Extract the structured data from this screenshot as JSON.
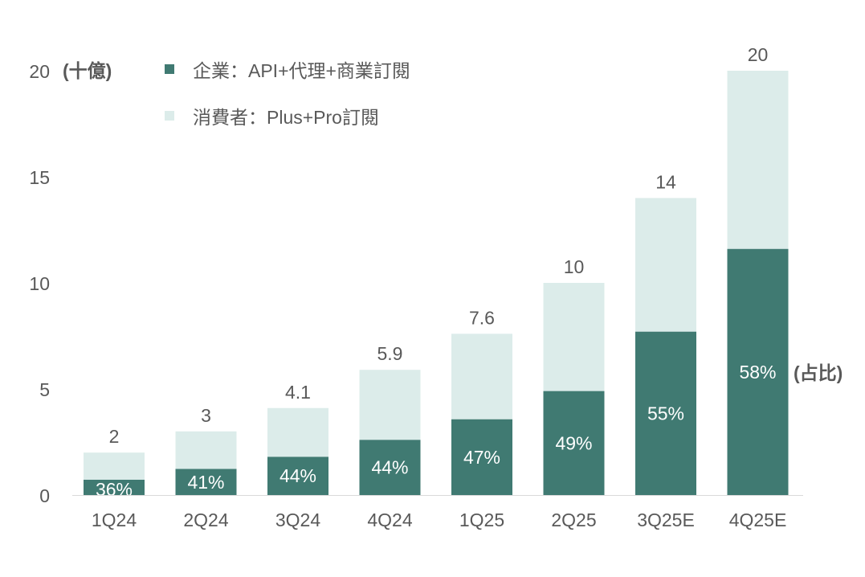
{
  "chart_data": {
    "type": "bar",
    "stacked": true,
    "title": "",
    "unit_label": "(十億)",
    "share_label": "(占比)",
    "categories": [
      "1Q24",
      "2Q24",
      "3Q24",
      "4Q24",
      "1Q25",
      "2Q25",
      "3Q25E",
      "4Q25E"
    ],
    "totals": [
      2,
      3,
      4.1,
      5.9,
      7.6,
      10,
      14,
      20
    ],
    "enterprise_share_pct": [
      36,
      41,
      44,
      44,
      47,
      49,
      55,
      58
    ],
    "share_labels": [
      "36%",
      "41%",
      "44%",
      "44%",
      "47%",
      "49%",
      "55%",
      "58%"
    ],
    "total_labels": [
      "2",
      "3",
      "4.1",
      "5.9",
      "7.6",
      "10",
      "14",
      "20"
    ],
    "series": [
      {
        "name": "企業：API+代理+商業訂閱",
        "color": "#407a72",
        "values": [
          0.72,
          1.23,
          1.8,
          2.6,
          3.57,
          4.9,
          7.7,
          11.6
        ]
      },
      {
        "name": "消費者：Plus+Pro訂閱",
        "color": "#dcecea",
        "values": [
          1.28,
          1.77,
          2.3,
          3.3,
          4.03,
          5.1,
          6.3,
          8.4
        ]
      }
    ],
    "yticks": [
      0,
      5,
      10,
      15,
      20
    ],
    "ylim": [
      0,
      20
    ],
    "xlabel": "",
    "ylabel": "(十億)",
    "grid": false,
    "legend_position": "top-left"
  }
}
